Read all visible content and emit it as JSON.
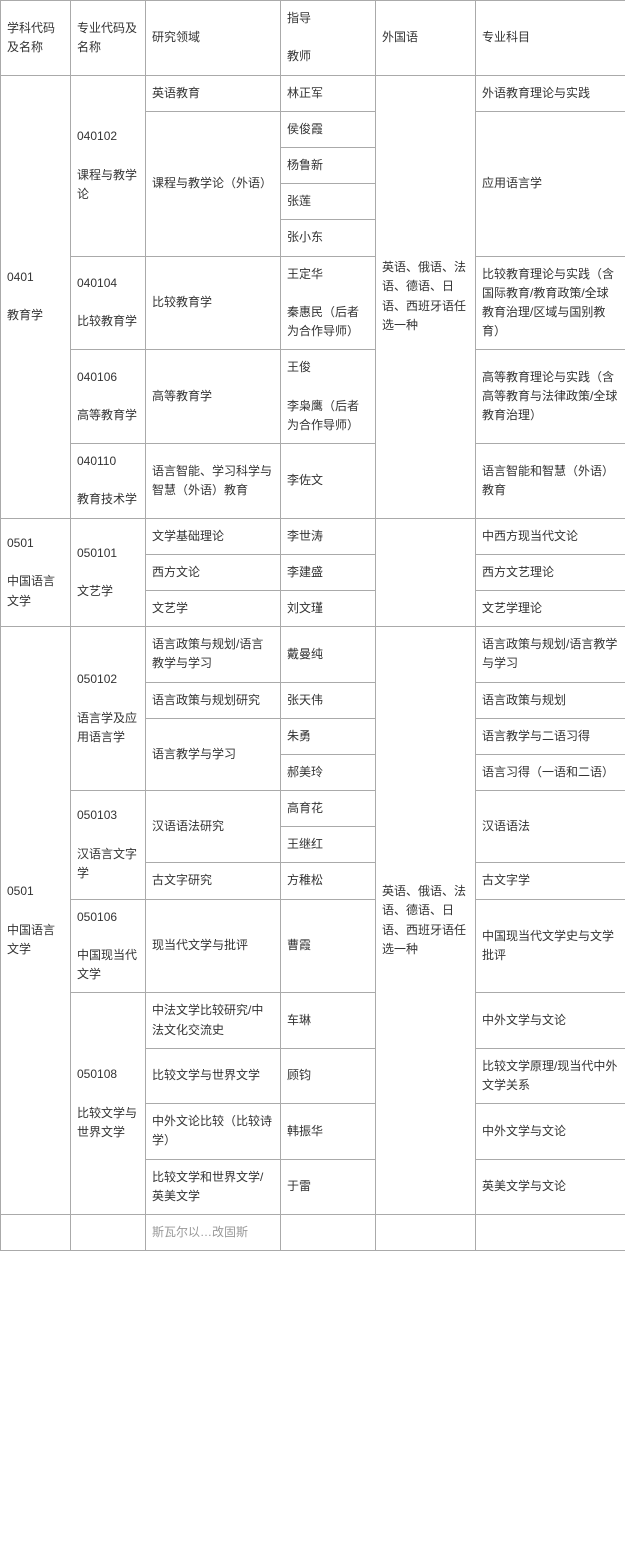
{
  "headers": {
    "c1": "学科代码及名称",
    "c2": "专业代码及名称",
    "c3": "研究领域",
    "c4": "指导\n\n教师",
    "c5": "外国语",
    "c6": "专业科目"
  },
  "groups": [
    {
      "discipline": "0401\n\n教育学",
      "foreign_lang": "英语、俄语、法语、德语、日语、西班牙语任选一种",
      "majors": [
        {
          "major": "040102\n\n课程与教学论",
          "rows": [
            {
              "area": "英语教育",
              "teacher": "林正军",
              "subject": "外语教育理论与实践"
            },
            {
              "area": "课程与教学论（外语）",
              "area_span": 4,
              "teacher": "侯俊霞",
              "subject": "应用语言学",
              "subject_span": 4
            },
            {
              "teacher": "杨鲁新"
            },
            {
              "teacher": "张莲"
            },
            {
              "teacher": "张小东"
            }
          ]
        },
        {
          "major": "040104\n\n比较教育学",
          "rows": [
            {
              "area": "比较教育学",
              "teacher": "王定华\n\n秦惠民（后者为合作导师）",
              "subject": "比较教育理论与实践（含国际教育/教育政策/全球教育治理/区域与国别教育）"
            }
          ]
        },
        {
          "major": "040106\n\n高等教育学",
          "rows": [
            {
              "area": "高等教育学",
              "teacher": "王俊\n\n李枭鹰（后者为合作导师）",
              "subject": "高等教育理论与实践（含高等教育与法律政策/全球教育治理）"
            }
          ]
        },
        {
          "major": "040110\n\n教育技术学",
          "rows": [
            {
              "area": "语言智能、学习科学与智慧（外语）教育",
              "teacher": "李佐文",
              "subject": "语言智能和智慧（外语）教育"
            }
          ]
        }
      ]
    },
    {
      "discipline": "0501\n\n中国语言文学",
      "foreign_lang": "",
      "majors": [
        {
          "major": "050101\n\n文艺学",
          "rows": [
            {
              "area": "文学基础理论",
              "teacher": "李世涛",
              "subject": "中西方现当代文论"
            },
            {
              "area": "西方文论",
              "teacher": "李建盛",
              "subject": "西方文艺理论"
            },
            {
              "area": "文艺学",
              "teacher": "刘文瑾",
              "subject": "文艺学理论"
            }
          ]
        }
      ]
    },
    {
      "discipline": "0501\n\n中国语言文学",
      "foreign_lang": "英语、俄语、法语、德语、日语、西班牙语任选一种",
      "majors": [
        {
          "major": "050102\n\n语言学及应用语言学",
          "rows": [
            {
              "area": "语言政策与规划/语言教学与学习",
              "teacher": "戴曼纯",
              "subject": "语言政策与规划/语言教学与学习"
            },
            {
              "area": "语言政策与规划研究",
              "teacher": "张天伟",
              "subject": "语言政策与规划"
            },
            {
              "area": "语言教学与学习",
              "area_span": 2,
              "teacher": "朱勇",
              "subject": "语言教学与二语习得"
            },
            {
              "teacher": "郝美玲",
              "subject": "语言习得（一语和二语）"
            }
          ]
        },
        {
          "major": "050103\n\n汉语言文字学",
          "rows": [
            {
              "area": "汉语语法研究",
              "area_span": 2,
              "teacher": "高育花",
              "subject": "汉语语法",
              "subject_span": 2
            },
            {
              "teacher": "王继红"
            },
            {
              "area": "古文字研究",
              "teacher": "方稚松",
              "subject": "古文字学"
            }
          ]
        },
        {
          "major": "050106\n\n中国现当代文学",
          "rows": [
            {
              "area": "现当代文学与批评",
              "teacher": "曹霞",
              "subject": "中国现当代文学史与文学批评"
            }
          ]
        },
        {
          "major": "050108\n\n比较文学与世界文学",
          "rows": [
            {
              "area": "中法文学比较研究/中法文化交流史",
              "teacher": "车琳",
              "subject": "中外文学与文论"
            },
            {
              "area": "比较文学与世界文学",
              "teacher": "顾钧",
              "subject": "比较文学原理/现当代中外文学关系"
            },
            {
              "area": "中外文论比较（比较诗学）",
              "teacher": "韩振华",
              "subject": "中外文学与文论"
            },
            {
              "area": "比较文学和世界文学/英美文学",
              "teacher": "于雷",
              "subject": "英美文学与文论"
            }
          ]
        }
      ]
    }
  ],
  "trailing_fragment": "斯瓦尔以…改固斯"
}
